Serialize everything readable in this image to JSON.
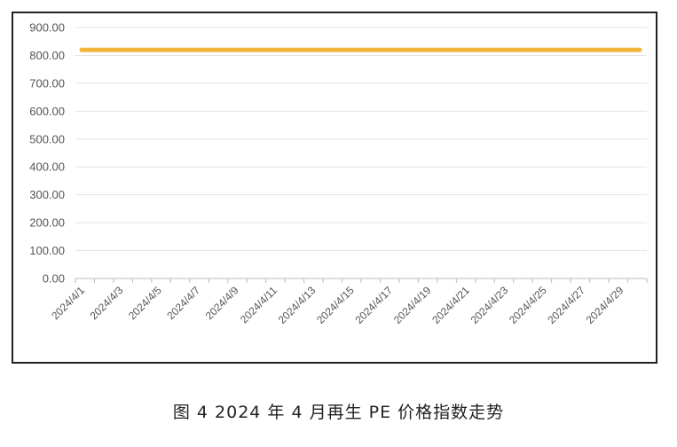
{
  "caption": "图 4  2024 年 4 月再生 PE 价格指数走势",
  "colors": {
    "series": "#F2B43A",
    "grid": "#E3E3E3",
    "axis": "#BBBBBB",
    "text": "#555555"
  },
  "chart_data": {
    "type": "line",
    "title": "",
    "xlabel": "",
    "ylabel": "",
    "ylim": [
      0,
      900
    ],
    "yticks": [
      "0.00",
      "100.00",
      "200.00",
      "300.00",
      "400.00",
      "500.00",
      "600.00",
      "700.00",
      "800.00",
      "900.00"
    ],
    "x_tick_labels": [
      "2024/4/1",
      "2024/4/3",
      "2024/4/5",
      "2024/4/7",
      "2024/4/9",
      "2024/4/11",
      "2024/4/13",
      "2024/4/15",
      "2024/4/17",
      "2024/4/19",
      "2024/4/21",
      "2024/4/23",
      "2024/4/25",
      "2024/4/27",
      "2024/4/29"
    ],
    "x": [
      "2024/4/1",
      "2024/4/2",
      "2024/4/3",
      "2024/4/4",
      "2024/4/5",
      "2024/4/6",
      "2024/4/7",
      "2024/4/8",
      "2024/4/9",
      "2024/4/10",
      "2024/4/11",
      "2024/4/12",
      "2024/4/13",
      "2024/4/14",
      "2024/4/15",
      "2024/4/16",
      "2024/4/17",
      "2024/4/18",
      "2024/4/19",
      "2024/4/20",
      "2024/4/21",
      "2024/4/22",
      "2024/4/23",
      "2024/4/24",
      "2024/4/25",
      "2024/4/26",
      "2024/4/27",
      "2024/4/28",
      "2024/4/29",
      "2024/4/30"
    ],
    "series": [
      {
        "values": [
          820,
          820,
          820,
          820,
          820,
          820,
          820,
          820,
          820,
          820,
          820,
          820,
          820,
          820,
          820,
          820,
          820,
          820,
          820,
          820,
          820,
          820,
          820,
          820,
          820,
          820,
          820,
          820,
          820,
          820
        ]
      }
    ],
    "grid": true,
    "legend": "none"
  }
}
